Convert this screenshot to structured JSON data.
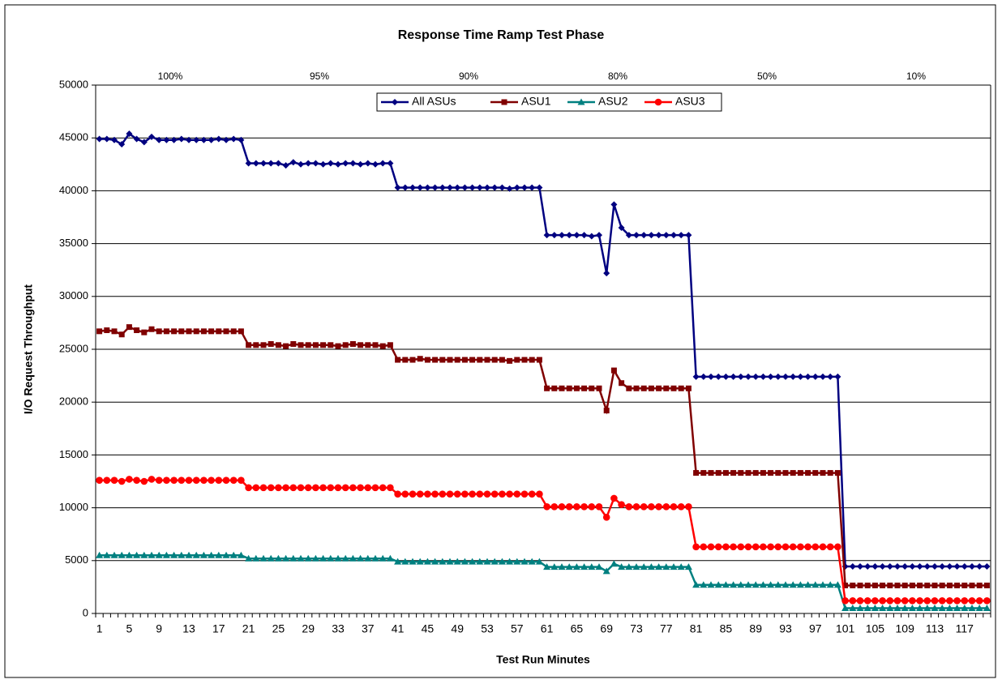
{
  "chart_data": {
    "type": "line",
    "title": "Response Time Ramp Test Phase",
    "x_label": "Test Run Minutes",
    "y_label": "I/O Request Throughput",
    "phase_labels": [
      "100%",
      "95%",
      "90%",
      "80%",
      "50%",
      "10%"
    ],
    "categories": [
      "1",
      null,
      null,
      null,
      "5",
      null,
      null,
      null,
      "9",
      null,
      null,
      null,
      "13",
      null,
      null,
      null,
      "17",
      null,
      null,
      null,
      "21",
      null,
      null,
      null,
      "25",
      null,
      null,
      null,
      "29",
      null,
      null,
      null,
      "33",
      null,
      null,
      null,
      "37",
      null,
      null,
      null,
      "41",
      null,
      null,
      null,
      "45",
      null,
      null,
      null,
      "49",
      null,
      null,
      null,
      "53",
      null,
      null,
      null,
      "57",
      null,
      null,
      null,
      "61",
      null,
      null,
      null,
      "65",
      null,
      null,
      null,
      "69",
      null,
      null,
      null,
      "73",
      null,
      null,
      null,
      "77",
      null,
      null,
      null,
      "81",
      null,
      null,
      null,
      "85",
      null,
      null,
      null,
      "89",
      null,
      null,
      null,
      "93",
      null,
      null,
      null,
      "97",
      null,
      null,
      null,
      "101",
      null,
      null,
      null,
      "105",
      null,
      null,
      null,
      "109",
      null,
      null,
      null,
      "113",
      null,
      null,
      null,
      "117",
      null,
      null,
      null
    ],
    "ylim": [
      0,
      50000
    ],
    "yticks": [
      0,
      5000,
      10000,
      15000,
      20000,
      25000,
      30000,
      35000,
      40000,
      45000,
      50000
    ],
    "grid": true,
    "legend": "top",
    "series": [
      {
        "name": "All ASUs",
        "color": "#000080",
        "marker": "diamond",
        "values": [
          44900,
          44900,
          44800,
          44400,
          45400,
          44900,
          44600,
          45100,
          44800,
          44800,
          44800,
          44900,
          44800,
          44800,
          44800,
          44800,
          44900,
          44800,
          44900,
          44800,
          42600,
          42600,
          42600,
          42600,
          42600,
          42400,
          42700,
          42500,
          42600,
          42600,
          42500,
          42600,
          42500,
          42600,
          42600,
          42500,
          42600,
          42500,
          42600,
          42600,
          40300,
          40300,
          40300,
          40300,
          40300,
          40300,
          40300,
          40300,
          40300,
          40300,
          40300,
          40300,
          40300,
          40300,
          40300,
          40200,
          40300,
          40300,
          40300,
          40300,
          35800,
          35800,
          35800,
          35800,
          35800,
          35800,
          35700,
          35800,
          32200,
          38700,
          36500,
          35800,
          35800,
          35800,
          35800,
          35800,
          35800,
          35800,
          35800,
          35800,
          22400,
          22400,
          22400,
          22400,
          22400,
          22400,
          22400,
          22400,
          22400,
          22400,
          22400,
          22400,
          22400,
          22400,
          22400,
          22400,
          22400,
          22400,
          22400,
          22400,
          4450,
          4450,
          4450,
          4450,
          4450,
          4450,
          4450,
          4450,
          4450,
          4450,
          4450,
          4450,
          4450,
          4450,
          4450,
          4450,
          4450,
          4450,
          4450,
          4450
        ]
      },
      {
        "name": "ASU1",
        "color": "#800000",
        "marker": "square",
        "values": [
          26700,
          26800,
          26700,
          26400,
          27100,
          26800,
          26600,
          26900,
          26700,
          26700,
          26700,
          26700,
          26700,
          26700,
          26700,
          26700,
          26700,
          26700,
          26700,
          26700,
          25400,
          25400,
          25400,
          25500,
          25400,
          25300,
          25500,
          25400,
          25400,
          25400,
          25400,
          25400,
          25300,
          25400,
          25500,
          25400,
          25400,
          25400,
          25300,
          25400,
          24000,
          24000,
          24000,
          24100,
          24000,
          24000,
          24000,
          24000,
          24000,
          24000,
          24000,
          24000,
          24000,
          24000,
          24000,
          23900,
          24000,
          24000,
          24000,
          24000,
          21300,
          21300,
          21300,
          21300,
          21300,
          21300,
          21300,
          21300,
          19200,
          23000,
          21800,
          21300,
          21300,
          21300,
          21300,
          21300,
          21300,
          21300,
          21300,
          21300,
          13300,
          13300,
          13300,
          13300,
          13300,
          13300,
          13300,
          13300,
          13300,
          13300,
          13300,
          13300,
          13300,
          13300,
          13300,
          13300,
          13300,
          13300,
          13300,
          13300,
          2650,
          2650,
          2650,
          2650,
          2650,
          2650,
          2650,
          2650,
          2650,
          2650,
          2650,
          2650,
          2650,
          2650,
          2650,
          2650,
          2650,
          2650,
          2650,
          2650
        ]
      },
      {
        "name": "ASU2",
        "color": "#008080",
        "marker": "triangle",
        "values": [
          5500,
          5500,
          5500,
          5500,
          5500,
          5500,
          5500,
          5500,
          5500,
          5500,
          5500,
          5500,
          5500,
          5500,
          5500,
          5500,
          5500,
          5500,
          5500,
          5500,
          5200,
          5200,
          5200,
          5200,
          5200,
          5200,
          5200,
          5200,
          5200,
          5200,
          5200,
          5200,
          5200,
          5200,
          5200,
          5200,
          5200,
          5200,
          5200,
          5200,
          4900,
          4900,
          4900,
          4900,
          4900,
          4900,
          4900,
          4900,
          4900,
          4900,
          4900,
          4900,
          4900,
          4900,
          4900,
          4900,
          4900,
          4900,
          4900,
          4900,
          4400,
          4400,
          4400,
          4400,
          4400,
          4400,
          4400,
          4400,
          4000,
          4700,
          4400,
          4400,
          4400,
          4400,
          4400,
          4400,
          4400,
          4400,
          4400,
          4400,
          2700,
          2700,
          2700,
          2700,
          2700,
          2700,
          2700,
          2700,
          2700,
          2700,
          2700,
          2700,
          2700,
          2700,
          2700,
          2700,
          2700,
          2700,
          2700,
          2700,
          500,
          500,
          500,
          500,
          500,
          500,
          500,
          500,
          500,
          500,
          500,
          500,
          500,
          500,
          500,
          500,
          500,
          500,
          500,
          500
        ]
      },
      {
        "name": "ASU3",
        "color": "#ff0000",
        "marker": "circle",
        "values": [
          12600,
          12600,
          12600,
          12500,
          12700,
          12600,
          12500,
          12700,
          12600,
          12600,
          12600,
          12600,
          12600,
          12600,
          12600,
          12600,
          12600,
          12600,
          12600,
          12600,
          11900,
          11900,
          11900,
          11900,
          11900,
          11900,
          11900,
          11900,
          11900,
          11900,
          11900,
          11900,
          11900,
          11900,
          11900,
          11900,
          11900,
          11900,
          11900,
          11900,
          11300,
          11300,
          11300,
          11300,
          11300,
          11300,
          11300,
          11300,
          11300,
          11300,
          11300,
          11300,
          11300,
          11300,
          11300,
          11300,
          11300,
          11300,
          11300,
          11300,
          10100,
          10100,
          10100,
          10100,
          10100,
          10100,
          10100,
          10100,
          9100,
          10900,
          10300,
          10100,
          10100,
          10100,
          10100,
          10100,
          10100,
          10100,
          10100,
          10100,
          6300,
          6300,
          6300,
          6300,
          6300,
          6300,
          6300,
          6300,
          6300,
          6300,
          6300,
          6300,
          6300,
          6300,
          6300,
          6300,
          6300,
          6300,
          6300,
          6300,
          1200,
          1200,
          1200,
          1200,
          1200,
          1200,
          1200,
          1200,
          1200,
          1200,
          1200,
          1200,
          1200,
          1200,
          1200,
          1200,
          1200,
          1200,
          1200,
          1200
        ]
      }
    ]
  }
}
